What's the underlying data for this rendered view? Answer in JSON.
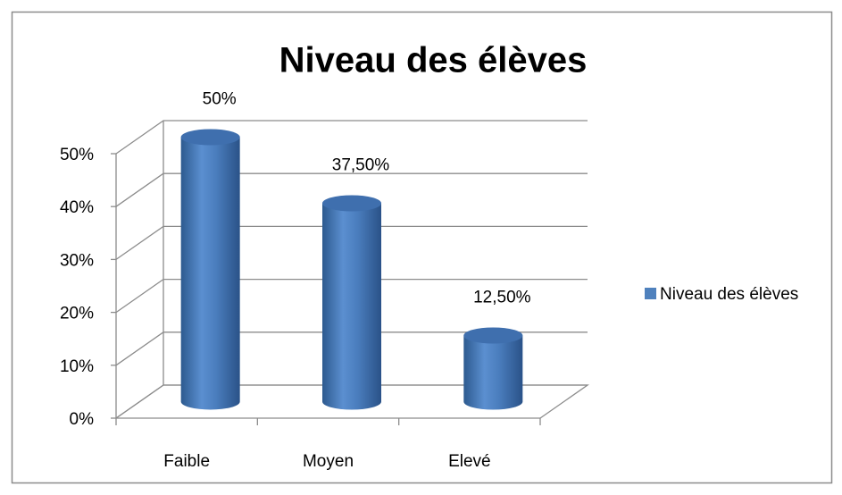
{
  "chart_data": {
    "type": "bar3d",
    "title": "Niveau des élèves",
    "categories": [
      "Faible",
      "Moyen",
      "Elevé"
    ],
    "series": [
      {
        "name": "Niveau des élèves",
        "color": "#4f81bd",
        "values": [
          50,
          37.5,
          12.5
        ],
        "value_labels": [
          "50%",
          "37,50%",
          "12,50%"
        ]
      }
    ],
    "ylim": [
      0,
      50
    ],
    "yticks": [
      {
        "value": 0,
        "label": "0%"
      },
      {
        "value": 10,
        "label": "10%"
      },
      {
        "value": 20,
        "label": "20%"
      },
      {
        "value": 30,
        "label": "30%"
      },
      {
        "value": 40,
        "label": "40%"
      },
      {
        "value": 50,
        "label": "50%"
      }
    ],
    "grid": true,
    "legend": "right"
  }
}
